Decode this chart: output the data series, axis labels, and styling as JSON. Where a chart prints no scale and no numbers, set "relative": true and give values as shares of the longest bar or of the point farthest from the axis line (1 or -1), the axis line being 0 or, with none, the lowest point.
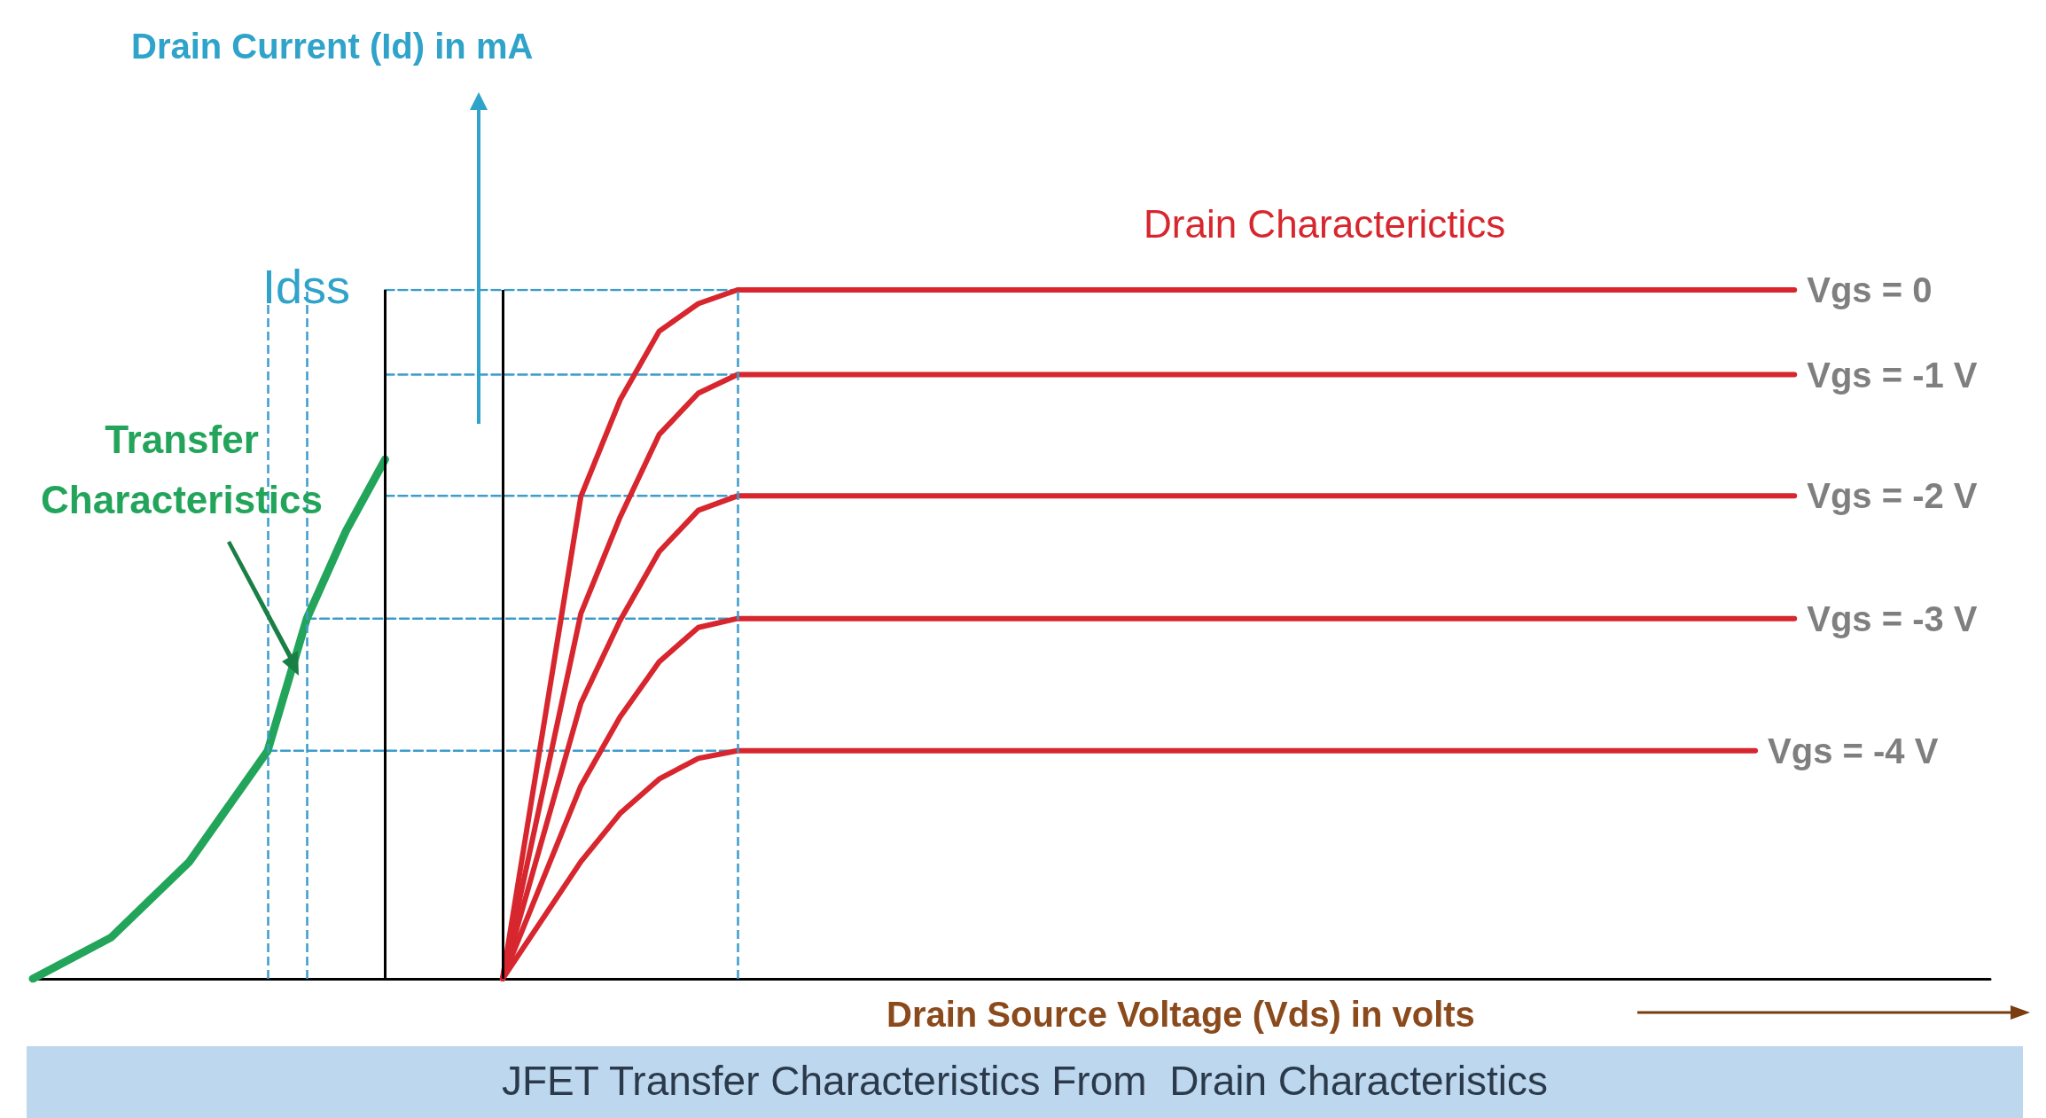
{
  "chart_data": {
    "type": "line",
    "relative": true,
    "title": "JFET Transfer Characteristics From  Drain Characteristics",
    "xlabel": "Drain Source Voltage (Vds) in volts",
    "annotations": [
      "Drain Current (Id) in mA",
      "Drain Characterictics",
      "Idss"
    ],
    "categories": [
      null,
      null,
      null,
      null,
      null,
      null,
      null,
      null,
      null,
      null,
      null,
      null,
      null,
      null,
      null,
      null,
      null,
      null,
      null,
      null,
      null,
      null,
      null,
      null,
      null,
      null,
      null,
      null,
      null,
      null,
      null,
      null,
      null,
      null,
      null,
      null,
      null,
      null,
      null,
      null,
      null,
      null,
      null,
      null,
      null,
      null,
      null,
      null,
      null,
      null,
      null
    ],
    "series": [
      {
        "name": "Transfer Characteristics",
        "color": "#22a55a",
        "values": [
          0,
          null,
          0.06,
          null,
          0.17,
          null,
          0.331,
          0.523,
          0.65,
          0.754,
          null,
          null,
          null,
          null,
          null,
          null,
          null,
          null,
          null,
          null,
          null,
          null,
          null,
          null,
          null,
          null,
          null,
          null,
          null,
          null,
          null,
          null,
          null,
          null,
          null,
          null,
          null,
          null,
          null,
          null,
          null,
          null,
          null,
          null,
          null,
          null,
          null,
          null,
          null,
          null,
          null
        ]
      },
      {
        "name": "Vgs = 0",
        "color": "#d7262e",
        "values": [
          null,
          null,
          null,
          null,
          null,
          null,
          null,
          null,
          null,
          null,
          null,
          null,
          0,
          null,
          0.7,
          0.84,
          0.94,
          0.98,
          1.0,
          null,
          null,
          null,
          null,
          null,
          null,
          null,
          null,
          null,
          null,
          null,
          null,
          null,
          null,
          null,
          null,
          null,
          null,
          null,
          null,
          null,
          null,
          null,
          null,
          null,
          null,
          1.0,
          null,
          null,
          null,
          null,
          null
        ]
      },
      {
        "name": "Vgs = -1 V",
        "color": "#d7262e",
        "values": [
          null,
          null,
          null,
          null,
          null,
          null,
          null,
          null,
          null,
          null,
          null,
          null,
          0,
          null,
          0.53,
          0.67,
          0.79,
          0.85,
          0.877,
          null,
          null,
          null,
          null,
          null,
          null,
          null,
          null,
          null,
          null,
          null,
          null,
          null,
          null,
          null,
          null,
          null,
          null,
          null,
          null,
          null,
          null,
          null,
          null,
          null,
          null,
          0.877,
          null,
          null,
          null,
          null,
          null
        ]
      },
      {
        "name": "Vgs = -2 V",
        "color": "#d7262e",
        "values": [
          null,
          null,
          null,
          null,
          null,
          null,
          null,
          null,
          null,
          null,
          null,
          null,
          0,
          null,
          0.4,
          0.52,
          0.62,
          0.68,
          0.701,
          null,
          null,
          null,
          null,
          null,
          null,
          null,
          null,
          null,
          null,
          null,
          null,
          null,
          null,
          null,
          null,
          null,
          null,
          null,
          null,
          null,
          null,
          null,
          null,
          null,
          null,
          0.701,
          null,
          null,
          null,
          null,
          null
        ]
      },
      {
        "name": "Vgs = -3 V",
        "color": "#d7262e",
        "values": [
          null,
          null,
          null,
          null,
          null,
          null,
          null,
          null,
          null,
          null,
          null,
          null,
          0,
          null,
          0.28,
          0.38,
          0.46,
          0.51,
          0.523,
          null,
          null,
          null,
          null,
          null,
          null,
          null,
          null,
          null,
          null,
          null,
          null,
          null,
          null,
          null,
          null,
          null,
          null,
          null,
          null,
          null,
          null,
          null,
          null,
          null,
          null,
          0.523,
          null,
          null,
          null,
          null,
          null
        ]
      },
      {
        "name": "Vgs = -4 V",
        "color": "#d7262e",
        "values": [
          null,
          null,
          null,
          null,
          null,
          null,
          null,
          null,
          null,
          null,
          null,
          null,
          0,
          null,
          0.17,
          0.24,
          0.29,
          0.32,
          0.331,
          null,
          null,
          null,
          null,
          null,
          null,
          null,
          null,
          null,
          null,
          null,
          null,
          null,
          null,
          null,
          null,
          null,
          null,
          null,
          null,
          null,
          null,
          null,
          null,
          null,
          0.331,
          null,
          null,
          null,
          null,
          null,
          null
        ]
      },
      {
        "color": "#3c9ccc",
        "line_style": "dashed",
        "values": [
          null,
          null,
          null,
          null,
          null,
          null,
          null,
          null,
          null,
          1.0,
          null,
          null,
          null,
          null,
          null,
          null,
          null,
          null,
          1.0,
          null,
          null,
          null,
          null,
          null,
          null,
          null,
          null,
          null,
          null,
          null,
          null,
          null,
          null,
          null,
          null,
          null,
          null,
          null,
          null,
          null,
          null,
          null,
          null,
          null,
          null,
          null,
          null,
          null,
          null,
          null,
          null
        ]
      },
      {
        "color": "#3c9ccc",
        "line_style": "dashed",
        "values": [
          null,
          null,
          null,
          null,
          null,
          null,
          null,
          null,
          null,
          0.877,
          null,
          null,
          null,
          null,
          null,
          null,
          null,
          null,
          0.877,
          null,
          null,
          null,
          null,
          null,
          null,
          null,
          null,
          null,
          null,
          null,
          null,
          null,
          null,
          null,
          null,
          null,
          null,
          null,
          null,
          null,
          null,
          null,
          null,
          null,
          null,
          null,
          null,
          null,
          null,
          null,
          null
        ]
      },
      {
        "color": "#3c9ccc",
        "line_style": "dashed",
        "values": [
          null,
          null,
          null,
          null,
          null,
          null,
          null,
          null,
          null,
          0.701,
          null,
          null,
          null,
          null,
          null,
          null,
          null,
          null,
          0.701,
          null,
          null,
          null,
          null,
          null,
          null,
          null,
          null,
          null,
          null,
          null,
          null,
          null,
          null,
          null,
          null,
          null,
          null,
          null,
          null,
          null,
          null,
          null,
          null,
          null,
          null,
          null,
          null,
          null,
          null,
          null,
          null
        ]
      },
      {
        "color": "#3c9ccc",
        "line_style": "dashed",
        "values": [
          null,
          null,
          null,
          null,
          null,
          null,
          null,
          0.523,
          null,
          null,
          null,
          null,
          null,
          null,
          null,
          null,
          null,
          null,
          0.523,
          null,
          null,
          null,
          null,
          null,
          null,
          null,
          null,
          null,
          null,
          null,
          null,
          null,
          null,
          null,
          null,
          null,
          null,
          null,
          null,
          null,
          null,
          null,
          null,
          null,
          null,
          null,
          null,
          null,
          null,
          null,
          null
        ]
      },
      {
        "color": "#3c9ccc",
        "line_style": "dashed",
        "values": [
          null,
          null,
          null,
          null,
          null,
          null,
          0.331,
          null,
          null,
          null,
          null,
          null,
          null,
          null,
          null,
          null,
          null,
          null,
          0.331,
          null,
          null,
          null,
          null,
          null,
          null,
          null,
          null,
          null,
          null,
          null,
          null,
          null,
          null,
          null,
          null,
          null,
          null,
          null,
          null,
          null,
          null,
          null,
          null,
          null,
          null,
          null,
          null,
          null,
          null,
          null,
          null
        ]
      }
    ],
    "marker": "none",
    "line_style": "solid",
    "grid": false
  }
}
